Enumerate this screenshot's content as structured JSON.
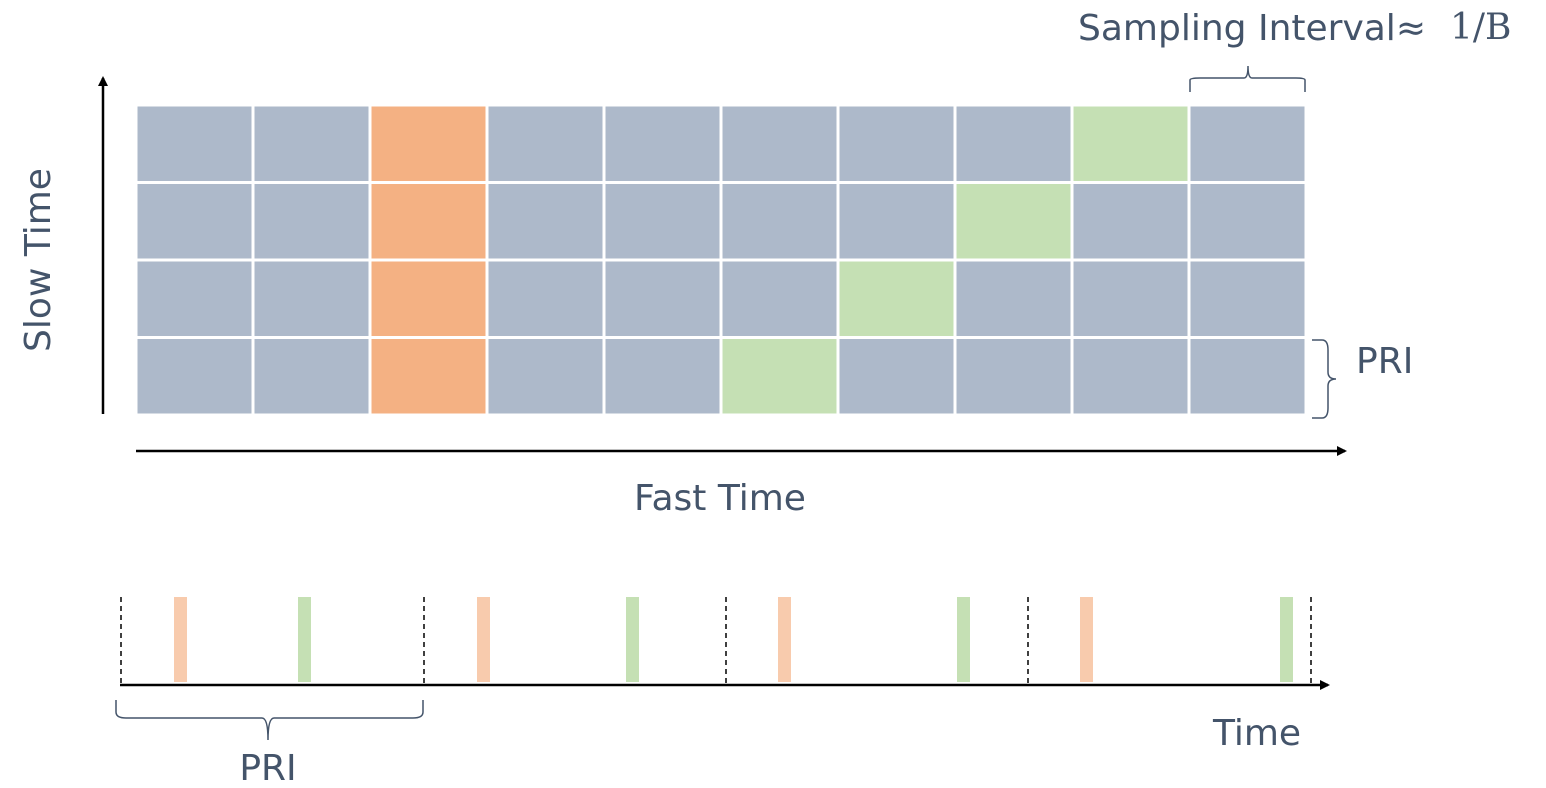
{
  "labels": {
    "sampling": "Sampling Interval≈",
    "sampling_formula": "1/B",
    "slow_time": "Slow Time",
    "fast_time": "Fast Time",
    "pri_right": "PRI",
    "time": "Time",
    "pri_bottom": "PRI"
  }
}
